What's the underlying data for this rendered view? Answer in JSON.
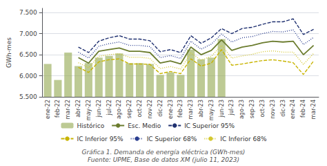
{
  "chart_data": {
    "type": "bar",
    "annotations": [
      "Gráfica 1. Demanda de energía eléctrica (GWh-mes)",
      "Fuente: UPME, Base de datos XM (julio 11, 2023)"
    ],
    "ylabel": "GWh-mes",
    "categories": [
      "ene-22",
      "feb-22",
      "mar-22",
      "abr-22",
      "may-22",
      "jun-22",
      "jul-22",
      "ago-22",
      "sep-22",
      "oct-22",
      "nov-22",
      "dic-22",
      "ene-23",
      "feb-23",
      "mar-23",
      "abr-23",
      "may-23",
      "jun-23",
      "jul-23",
      "ago-23",
      "sep-23",
      "oct-23",
      "nov-23",
      "dic-23",
      "ene-24",
      "feb-24",
      "mar-24"
    ],
    "series": [
      {
        "name": "Histórico",
        "type": "bar",
        "color": "#9aad5b",
        "values": [
          6280,
          5900,
          6550,
          6230,
          6300,
          6430,
          6470,
          6530,
          6300,
          6300,
          6280,
          6020,
          6080,
          6020,
          6620,
          6390,
          6430,
          6870,
          null,
          null,
          null,
          null,
          null,
          null,
          null,
          null,
          null
        ]
      },
      {
        "name": "Esc. Medio",
        "type": "line",
        "color": "#6b7c2e",
        "line_style": "solid",
        "values": [
          null,
          null,
          null,
          6430,
          6300,
          6580,
          6620,
          6660,
          6580,
          6580,
          6550,
          6300,
          6350,
          6280,
          6680,
          6500,
          6600,
          6850,
          6600,
          6680,
          6720,
          6780,
          6820,
          6800,
          6820,
          6500,
          6720
        ]
      },
      {
        "name": "IC Superior 95%",
        "type": "line",
        "color": "#1f3070",
        "line_style": "dashed",
        "values": [
          null,
          null,
          null,
          6680,
          6550,
          6820,
          6900,
          6950,
          6870,
          6870,
          6830,
          6570,
          6620,
          6550,
          6950,
          6770,
          6900,
          7120,
          7000,
          7120,
          7150,
          7220,
          7280,
          7280,
          7350,
          6980,
          7100
        ]
      },
      {
        "name": "IC Inferior 95%",
        "type": "line",
        "color": "#c8b400",
        "line_style": "dashed",
        "values": [
          null,
          null,
          null,
          6200,
          6080,
          6330,
          6380,
          6400,
          6280,
          6280,
          6270,
          6050,
          6100,
          6050,
          6400,
          6230,
          6300,
          6620,
          6250,
          6280,
          6320,
          6360,
          6380,
          6350,
          6310,
          6030,
          6350
        ]
      },
      {
        "name": "IC Superior 68%",
        "type": "line",
        "color": "#2a3d8f",
        "line_style": "dotted",
        "values": [
          null,
          null,
          null,
          6560,
          6420,
          6700,
          6760,
          6800,
          6720,
          6720,
          6690,
          6430,
          6480,
          6410,
          6820,
          6630,
          6750,
          6990,
          6800,
          6900,
          6930,
          7000,
          7050,
          7040,
          7090,
          6740,
          6910
        ]
      },
      {
        "name": "IC Inferior 68%",
        "type": "line",
        "color": "#d4c832",
        "line_style": "dotted",
        "values": [
          null,
          null,
          null,
          6310,
          6190,
          6460,
          6500,
          6520,
          6440,
          6440,
          6410,
          6170,
          6220,
          6160,
          6540,
          6370,
          6460,
          6720,
          6420,
          6470,
          6510,
          6570,
          6590,
          6560,
          6560,
          6270,
          6530
        ]
      }
    ],
    "ylim": [
      5500,
      7600
    ],
    "yticks": [
      {
        "value": 5500,
        "label": "5.500"
      },
      {
        "value": 6000,
        "label": "6.000"
      },
      {
        "value": 6500,
        "label": "6.500"
      },
      {
        "value": 7000,
        "label": "7.000"
      },
      {
        "value": 7500,
        "label": "7.500"
      }
    ],
    "grid": true,
    "legend": "bottom"
  }
}
